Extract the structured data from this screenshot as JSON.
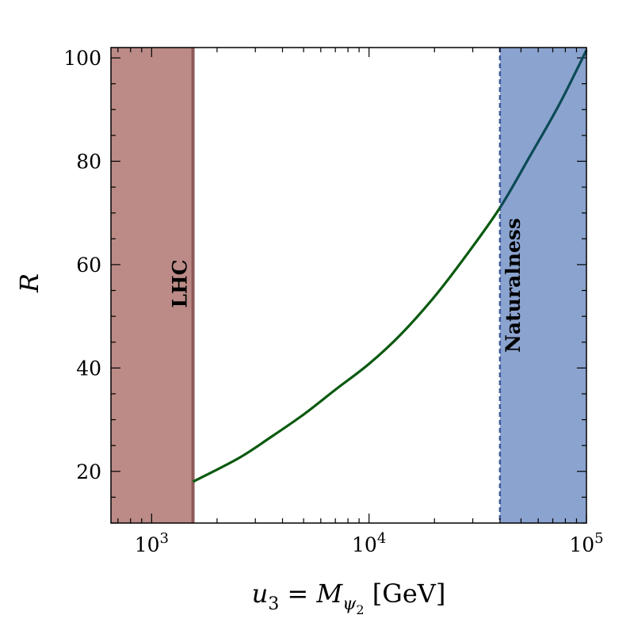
{
  "chart_data": {
    "type": "line",
    "title": "",
    "xlabel": {
      "var": "u",
      "var_sub": "3",
      "eq": " = ",
      "var2": "M",
      "var2_sub": "ψ",
      "var2_subsub": "2",
      "unit": " [GeV]"
    },
    "ylabel": "R",
    "x_scale": "log",
    "xlim": [
      650,
      100000
    ],
    "ylim": [
      10,
      102
    ],
    "x_ticks": [
      {
        "value": 1000,
        "base": "10",
        "exp": "3"
      },
      {
        "value": 10000,
        "base": "10",
        "exp": "4"
      },
      {
        "value": 100000,
        "base": "10",
        "exp": "5"
      }
    ],
    "y_ticks": [
      {
        "value": 20,
        "label": "20"
      },
      {
        "value": 40,
        "label": "40"
      },
      {
        "value": 60,
        "label": "60"
      },
      {
        "value": 80,
        "label": "80"
      },
      {
        "value": 100,
        "label": "100"
      }
    ],
    "series": [
      {
        "color": "#0b5a10",
        "color_in_band": "#0b4a55",
        "x": [
          1550,
          2500,
          3500,
          5000,
          7000,
          10000,
          14000,
          20000,
          28000,
          40000,
          55000,
          75000,
          100000
        ],
        "y": [
          18,
          22.5,
          26.5,
          31,
          35.8,
          40.8,
          46.5,
          53.8,
          61.8,
          71,
          81,
          91,
          101.5
        ]
      }
    ],
    "bands": [
      {
        "label": "LHC",
        "x_from": 650,
        "x_to": 1550,
        "fill": "#bc8b87",
        "edge": "#8d5a57"
      },
      {
        "label": "Naturalness",
        "x_from": 40000,
        "x_to": 100000,
        "fill": "#8ba3cf",
        "edge": "#3e5a99"
      }
    ],
    "grid": false,
    "legend": "none"
  }
}
